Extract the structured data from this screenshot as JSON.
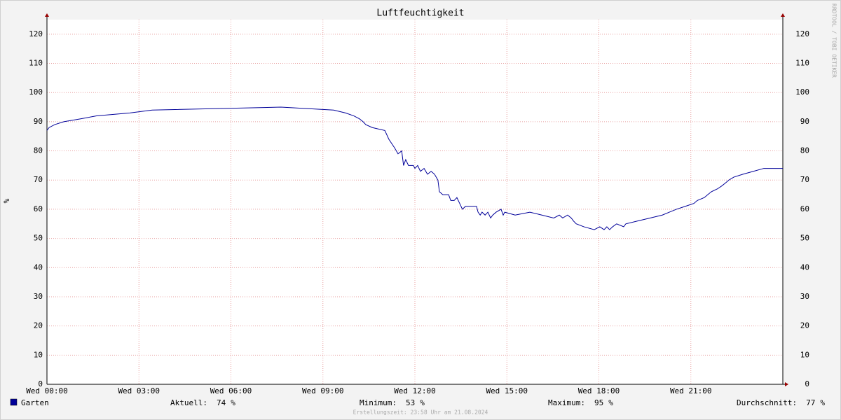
{
  "chart_data": {
    "type": "line",
    "title": "Luftfeuchtigkeit",
    "y_label": "%",
    "side_text": "RRDTOOL / TOBI OETIKER",
    "footer": "Erstellungszeit: 23:58 Uhr am 21.08.2024",
    "xlim": [
      0,
      24
    ],
    "xticks": [
      {
        "value": 0,
        "label": "Wed 00:00"
      },
      {
        "value": 3,
        "label": "Wed 03:00"
      },
      {
        "value": 6,
        "label": "Wed 06:00"
      },
      {
        "value": 9,
        "label": "Wed 09:00"
      },
      {
        "value": 12,
        "label": "Wed 12:00"
      },
      {
        "value": 15,
        "label": "Wed 15:00"
      },
      {
        "value": 18,
        "label": "Wed 18:00"
      },
      {
        "value": 21,
        "label": "Wed 21:00"
      }
    ],
    "ylim": [
      0,
      125
    ],
    "yticks": [
      0,
      10,
      20,
      30,
      40,
      50,
      60,
      70,
      80,
      90,
      100,
      110,
      120
    ],
    "grid": true,
    "series": [
      {
        "name": "Garten",
        "color": "#000099",
        "x": [
          0,
          0.07,
          0.25,
          0.55,
          1.1,
          1.62,
          2.7,
          3.43,
          7.63,
          9.35,
          9.74,
          10.01,
          10.19,
          10.31,
          10.4,
          10.61,
          11.02,
          11.15,
          11.34,
          11.45,
          11.57,
          11.63,
          11.7,
          11.79,
          11.95,
          12.0,
          12.09,
          12.18,
          12.3,
          12.41,
          12.53,
          12.64,
          12.75,
          12.8,
          12.91,
          13.1,
          13.17,
          13.28,
          13.37,
          13.46,
          13.55,
          13.65,
          14.01,
          14.06,
          14.13,
          14.19,
          14.29,
          14.38,
          14.47,
          14.54,
          14.65,
          14.81,
          14.88,
          14.93,
          15.27,
          15.75,
          16.14,
          16.53,
          16.71,
          16.82,
          16.98,
          17.1,
          17.17,
          17.26,
          17.51,
          17.85,
          18.03,
          18.17,
          18.26,
          18.35,
          18.45,
          18.58,
          18.81,
          18.88,
          19.27,
          19.68,
          20.07,
          20.3,
          20.53,
          20.82,
          21.1,
          21.21,
          21.44,
          21.55,
          21.67,
          21.87,
          22.01,
          22.13,
          22.24,
          22.4,
          22.7,
          23.04,
          23.38,
          24
        ],
        "values": [
          87,
          88,
          89,
          90,
          91,
          92,
          93,
          94,
          95,
          94,
          93,
          92,
          91,
          90,
          89,
          88,
          87,
          84,
          81,
          79,
          80,
          75,
          77,
          75,
          75,
          74,
          75,
          73,
          74,
          72,
          73,
          72,
          70,
          66,
          65,
          65,
          63,
          63,
          64,
          62,
          60,
          61,
          61,
          59,
          58,
          59,
          58,
          59,
          57,
          58,
          59,
          60,
          58,
          59,
          58,
          59,
          58,
          57,
          58,
          57,
          58,
          57,
          56,
          55,
          54,
          53,
          54,
          53,
          54,
          53,
          54,
          55,
          54,
          55,
          56,
          57,
          58,
          59,
          60,
          61,
          62,
          63,
          64,
          65,
          66,
          67,
          68,
          69,
          70,
          71,
          72,
          73,
          74,
          74
        ]
      }
    ],
    "stats": [
      {
        "label": "Aktuell:",
        "value": 74,
        "unit": "%"
      },
      {
        "label": "Minimum:",
        "value": 53,
        "unit": "%"
      },
      {
        "label": "Maximum:",
        "value": 95,
        "unit": "%"
      },
      {
        "label": "Durchschnitt:",
        "value": 77,
        "unit": "%"
      }
    ]
  }
}
